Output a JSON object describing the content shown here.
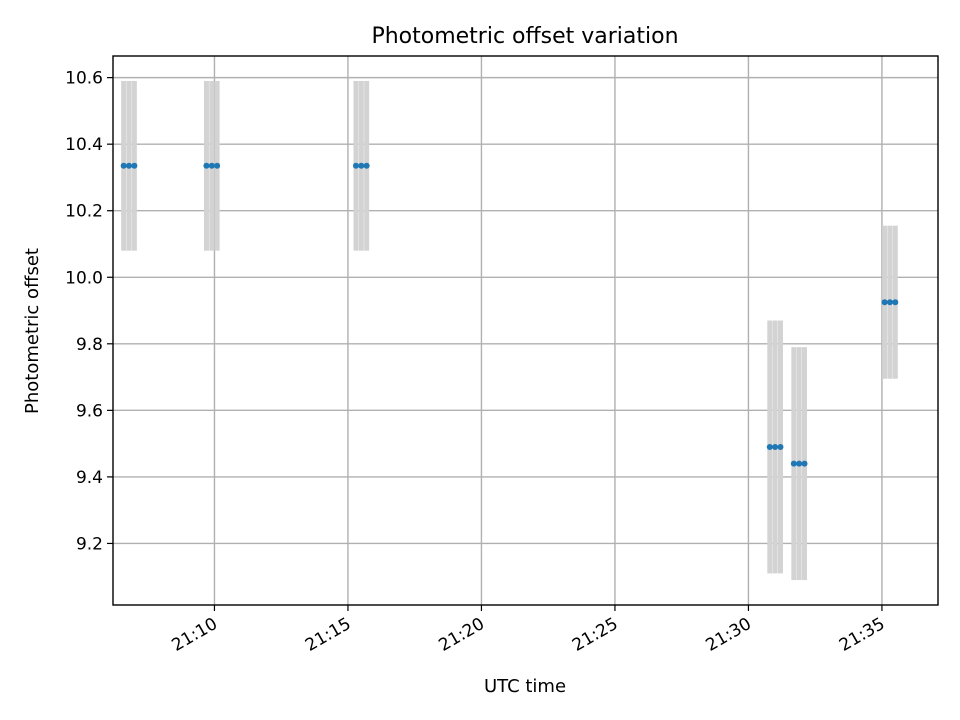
{
  "chart_data": {
    "type": "scatter",
    "title": "Photometric offset variation",
    "xlabel": "UTC time",
    "ylabel": "Photometric offset",
    "x_unit": "minutes after 21:00 UTC",
    "xlim": [
      6.2,
      37.1
    ],
    "ylim": [
      9.015,
      10.665
    ],
    "x_ticks": [
      {
        "value": 10,
        "label": "21:10"
      },
      {
        "value": 15,
        "label": "21:15"
      },
      {
        "value": 20,
        "label": "21:20"
      },
      {
        "value": 25,
        "label": "21:25"
      },
      {
        "value": 30,
        "label": "21:30"
      },
      {
        "value": 35,
        "label": "21:35"
      }
    ],
    "y_ticks": [
      {
        "value": 9.2,
        "label": "9.2"
      },
      {
        "value": 9.4,
        "label": "9.4"
      },
      {
        "value": 9.6,
        "label": "9.6"
      },
      {
        "value": 9.8,
        "label": "9.8"
      },
      {
        "value": 10.0,
        "label": "10.0"
      },
      {
        "value": 10.2,
        "label": "10.2"
      },
      {
        "value": 10.4,
        "label": "10.4"
      },
      {
        "value": 10.6,
        "label": "10.6"
      }
    ],
    "grid": true,
    "colors": {
      "points": "#1f77b4",
      "error_bars": "#d3d3d3"
    },
    "points": [
      {
        "x": 6.6,
        "y": 10.335,
        "err": 0.255
      },
      {
        "x": 6.8,
        "y": 10.335,
        "err": 0.255
      },
      {
        "x": 7.0,
        "y": 10.335,
        "err": 0.255
      },
      {
        "x": 9.7,
        "y": 10.335,
        "err": 0.255
      },
      {
        "x": 9.9,
        "y": 10.335,
        "err": 0.255
      },
      {
        "x": 10.1,
        "y": 10.335,
        "err": 0.255
      },
      {
        "x": 15.3,
        "y": 10.335,
        "err": 0.255
      },
      {
        "x": 15.5,
        "y": 10.335,
        "err": 0.255
      },
      {
        "x": 15.7,
        "y": 10.335,
        "err": 0.255
      },
      {
        "x": 30.8,
        "y": 9.49,
        "err": 0.38
      },
      {
        "x": 31.0,
        "y": 9.49,
        "err": 0.38
      },
      {
        "x": 31.2,
        "y": 9.49,
        "err": 0.38
      },
      {
        "x": 31.7,
        "y": 9.44,
        "err": 0.35
      },
      {
        "x": 31.9,
        "y": 9.44,
        "err": 0.35
      },
      {
        "x": 32.1,
        "y": 9.44,
        "err": 0.35
      },
      {
        "x": 35.1,
        "y": 9.925,
        "err": 0.23
      },
      {
        "x": 35.3,
        "y": 9.925,
        "err": 0.23
      },
      {
        "x": 35.5,
        "y": 9.925,
        "err": 0.23
      }
    ]
  }
}
